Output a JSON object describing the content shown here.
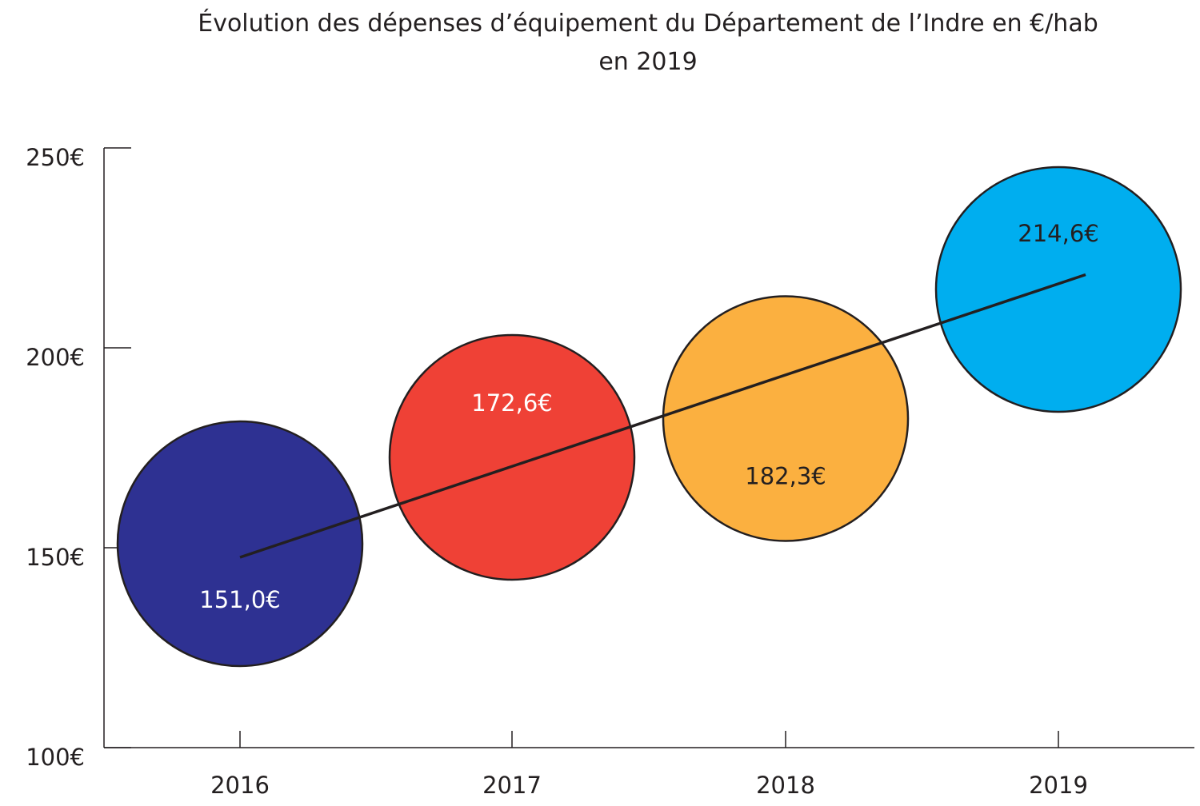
{
  "chart_data": {
    "type": "scatter",
    "title": "Évolution des dépenses d’équipement du Département de l’Indre en €/hab",
    "subtitle": "en 2019",
    "categories": [
      "2016",
      "2017",
      "2018",
      "2019"
    ],
    "values": [
      151.0,
      172.6,
      182.3,
      214.6
    ],
    "data_labels": [
      "151,0€",
      "172,6€",
      "182,3€",
      "214,6€"
    ],
    "bubble_colors": [
      "#2e3192",
      "#ef4136",
      "#fbb040",
      "#00aeef"
    ],
    "label_colors": [
      "#ffffff",
      "#ffffff",
      "#231f20",
      "#231f20"
    ],
    "ylim": [
      100,
      250
    ],
    "yticks": [
      100,
      150,
      200,
      250
    ],
    "ytick_labels": [
      "100€",
      "150€",
      "200€",
      "250€"
    ],
    "trend_line": {
      "from": 147.6,
      "to": 218.3
    },
    "grid": false,
    "legend": "none"
  }
}
